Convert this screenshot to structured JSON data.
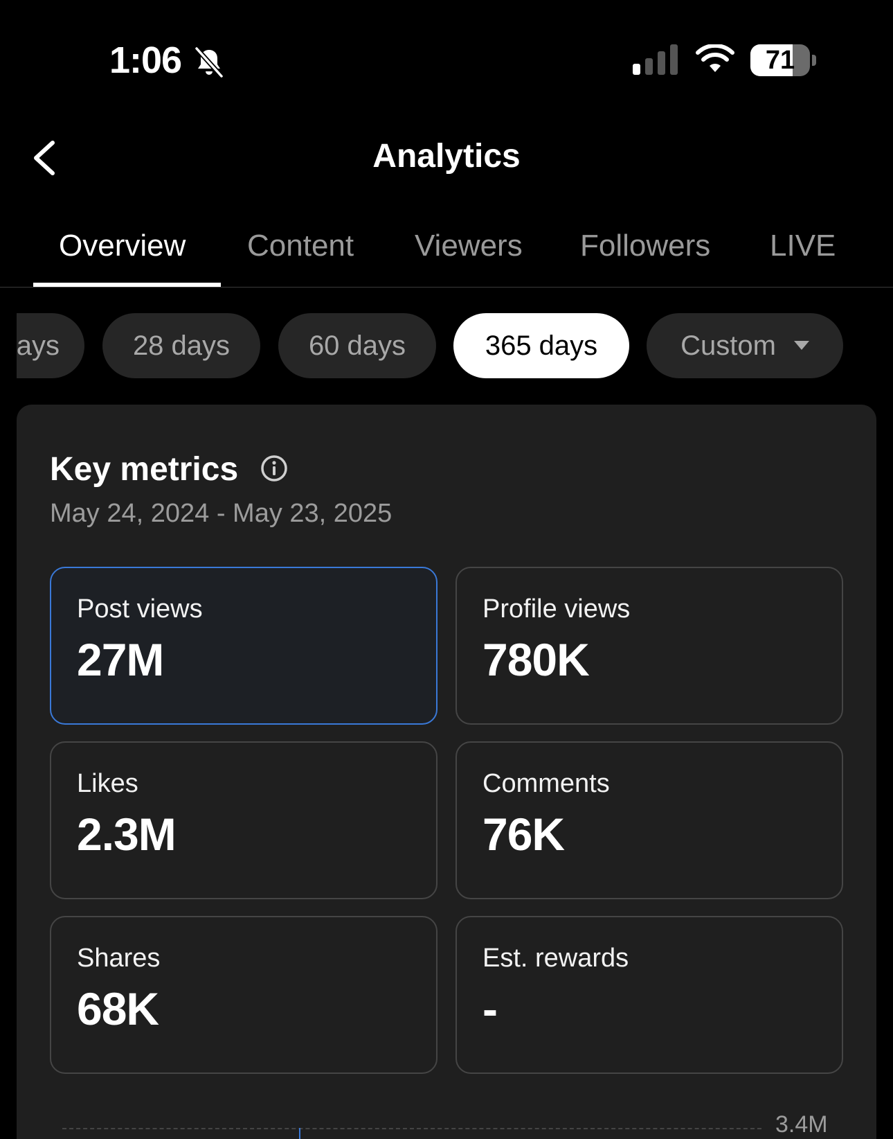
{
  "status_bar": {
    "time": "1:06",
    "silent_icon": "bell-slash-icon",
    "signal_icon": "cellular-signal-icon",
    "wifi_icon": "wifi-icon",
    "battery_percent": "71",
    "battery_level": 0.71
  },
  "header": {
    "back_icon": "chevron-left-icon",
    "title": "Analytics"
  },
  "tabs": [
    {
      "label": "Overview",
      "active": true
    },
    {
      "label": "Content",
      "active": false
    },
    {
      "label": "Viewers",
      "active": false
    },
    {
      "label": "Followers",
      "active": false
    },
    {
      "label": "LIVE",
      "active": false
    }
  ],
  "ranges": {
    "partial_label": "ays",
    "items": [
      {
        "label": "28 days",
        "active": false
      },
      {
        "label": "60 days",
        "active": false
      },
      {
        "label": "365 days",
        "active": true
      },
      {
        "label": "Custom",
        "active": false,
        "has_dropdown": true
      }
    ]
  },
  "key_metrics": {
    "title": "Key metrics",
    "info_icon": "info-circle-icon",
    "date_range": "May 24, 2024 - May 23, 2025",
    "metrics": [
      {
        "label": "Post views",
        "value": "27M",
        "selected": true
      },
      {
        "label": "Profile views",
        "value": "780K",
        "selected": false
      },
      {
        "label": "Likes",
        "value": "2.3M",
        "selected": false
      },
      {
        "label": "Comments",
        "value": "76K",
        "selected": false
      },
      {
        "label": "Shares",
        "value": "68K",
        "selected": false
      },
      {
        "label": "Est. rewards",
        "value": "-",
        "selected": false
      }
    ]
  },
  "chart": {
    "y_tick_top": "3.4M"
  },
  "colors": {
    "background": "#000000",
    "card": "#1f1f1f",
    "accent_blue": "#3a79d8",
    "muted_text": "#9c9c9c"
  }
}
